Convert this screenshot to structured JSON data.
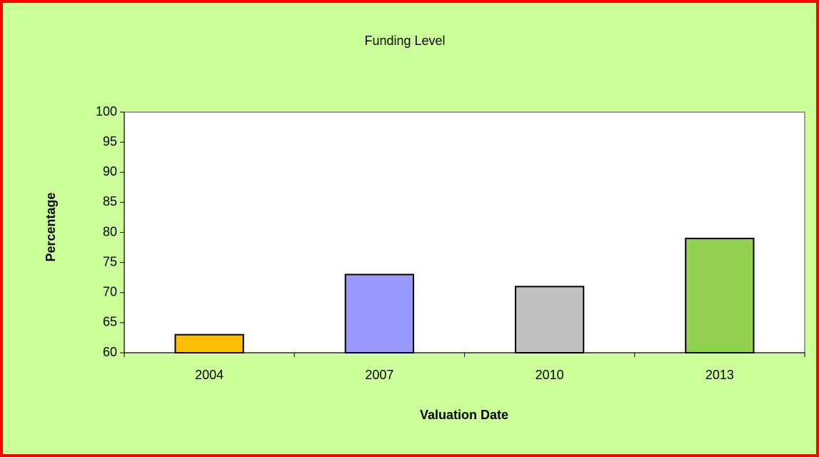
{
  "chart_data": {
    "type": "bar",
    "title": "Funding Level",
    "x_label": "Valuation Date",
    "y_label": "Percentage",
    "categories": [
      "2004",
      "2007",
      "2010",
      "2013"
    ],
    "values": [
      63,
      73,
      71,
      79
    ],
    "colors": [
      "#ffbf00",
      "#9999ff",
      "#c0c0c0",
      "#92d050"
    ],
    "ylim": [
      60,
      100
    ],
    "yticks": [
      60,
      65,
      70,
      75,
      80,
      85,
      90,
      95,
      100
    ],
    "grid": false
  }
}
